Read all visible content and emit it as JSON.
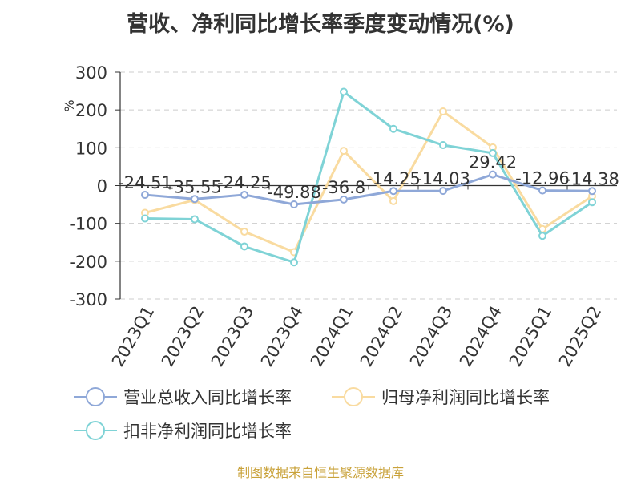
{
  "title": "营收、净利同比增长率季度变动情况(%)",
  "source_note": "制图数据来自恒生聚源数据库",
  "chart_data": {
    "type": "line",
    "title": "营收、净利同比增长率季度变动情况(%)",
    "ylabel": "%",
    "xlabel": "",
    "ylim": [
      -300,
      300
    ],
    "yticks": [
      300,
      200,
      100,
      0,
      -100,
      -200,
      -300
    ],
    "ytick_labels": [
      "300",
      "200",
      "100",
      "0",
      "-100",
      "-200",
      "-300"
    ],
    "grid": true,
    "legend_position": "bottom",
    "categories": [
      "2023Q1",
      "2023Q2",
      "2023Q3",
      "2023Q4",
      "2024Q1",
      "2024Q2",
      "2024Q3",
      "2024Q4",
      "2025Q1",
      "2025Q2"
    ],
    "series": [
      {
        "name": "营业总收入同比增长率",
        "color": "#8fa8d8",
        "values": [
          -24.51,
          -35.55,
          -24.25,
          -49.88,
          -36.8,
          -14.25,
          -14.03,
          29.42,
          -12.96,
          -14.38
        ],
        "data_labels": [
          "-24.51",
          "-35.55",
          "-24.25",
          "-49.88",
          "-36.8",
          "-14.25",
          "-14.03",
          "29.42",
          "-12.96",
          "-14.38"
        ]
      },
      {
        "name": "归母净利润同比增长率",
        "color": "#f9dba0",
        "values": [
          -72,
          -38,
          -122,
          -176,
          92,
          -41,
          196,
          101,
          -115,
          -28
        ]
      },
      {
        "name": "扣非净利润同比增长率",
        "color": "#7fd3d6",
        "values": [
          -87,
          -89,
          -161,
          -203,
          248,
          150,
          107,
          86,
          -133,
          -44
        ]
      }
    ]
  }
}
